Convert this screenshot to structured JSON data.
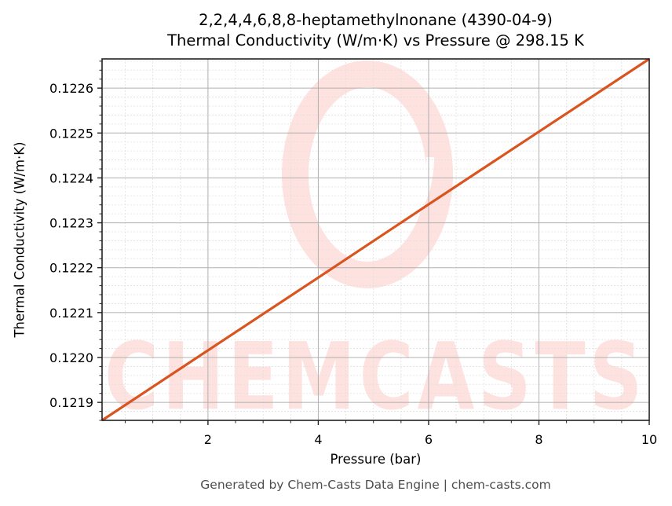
{
  "header": {
    "title_line1": "2,2,4,4,6,8,8-heptamethylnonane (4390-04-9)",
    "title_line2": "Thermal Conductivity (W/m·K) vs Pressure @ 298.15 K"
  },
  "axes": {
    "xlabel": "Pressure (bar)",
    "ylabel": "Thermal Conductivity (W/m·K)"
  },
  "footer": {
    "text": "Generated by Chem-Casts Data Engine | chem-casts.com"
  },
  "watermark": {
    "text": "CHEMCASTS"
  },
  "colors": {
    "line": "#d9541e",
    "watermark": "#fde2e0",
    "major_grid": "#b0b0b0",
    "minor_grid": "#e0e0e0",
    "axes": "#222222"
  },
  "chart_data": {
    "type": "line",
    "title": "2,2,4,4,6,8,8-heptamethylnonane (4390-04-9)\nThermal Conductivity (W/m·K) vs Pressure @ 298.15 K",
    "xlabel": "Pressure (bar)",
    "ylabel": "Thermal Conductivity (W/m·K)",
    "xlim": [
      0.08,
      10
    ],
    "ylim": [
      0.12186,
      0.122665
    ],
    "x_ticks": [
      2,
      4,
      6,
      8,
      10
    ],
    "x_tick_labels": [
      "2",
      "4",
      "6",
      "8",
      "10"
    ],
    "y_ticks": [
      0.1219,
      0.122,
      0.1221,
      0.1222,
      0.1223,
      0.1224,
      0.1225,
      0.1226
    ],
    "y_tick_labels": [
      "0.1219",
      "0.1220",
      "0.1221",
      "0.1222",
      "0.1223",
      "0.1224",
      "0.1225",
      "0.1226"
    ],
    "grid": true,
    "minor_grid": true,
    "legend": null,
    "series": [
      {
        "name": "Thermal Conductivity",
        "color": "#d9541e",
        "x": [
          0.08,
          2,
          4,
          6,
          8,
          10
        ],
        "y": [
          0.12186,
          0.122016,
          0.122178,
          0.122341,
          0.122503,
          0.122665
        ]
      }
    ]
  }
}
